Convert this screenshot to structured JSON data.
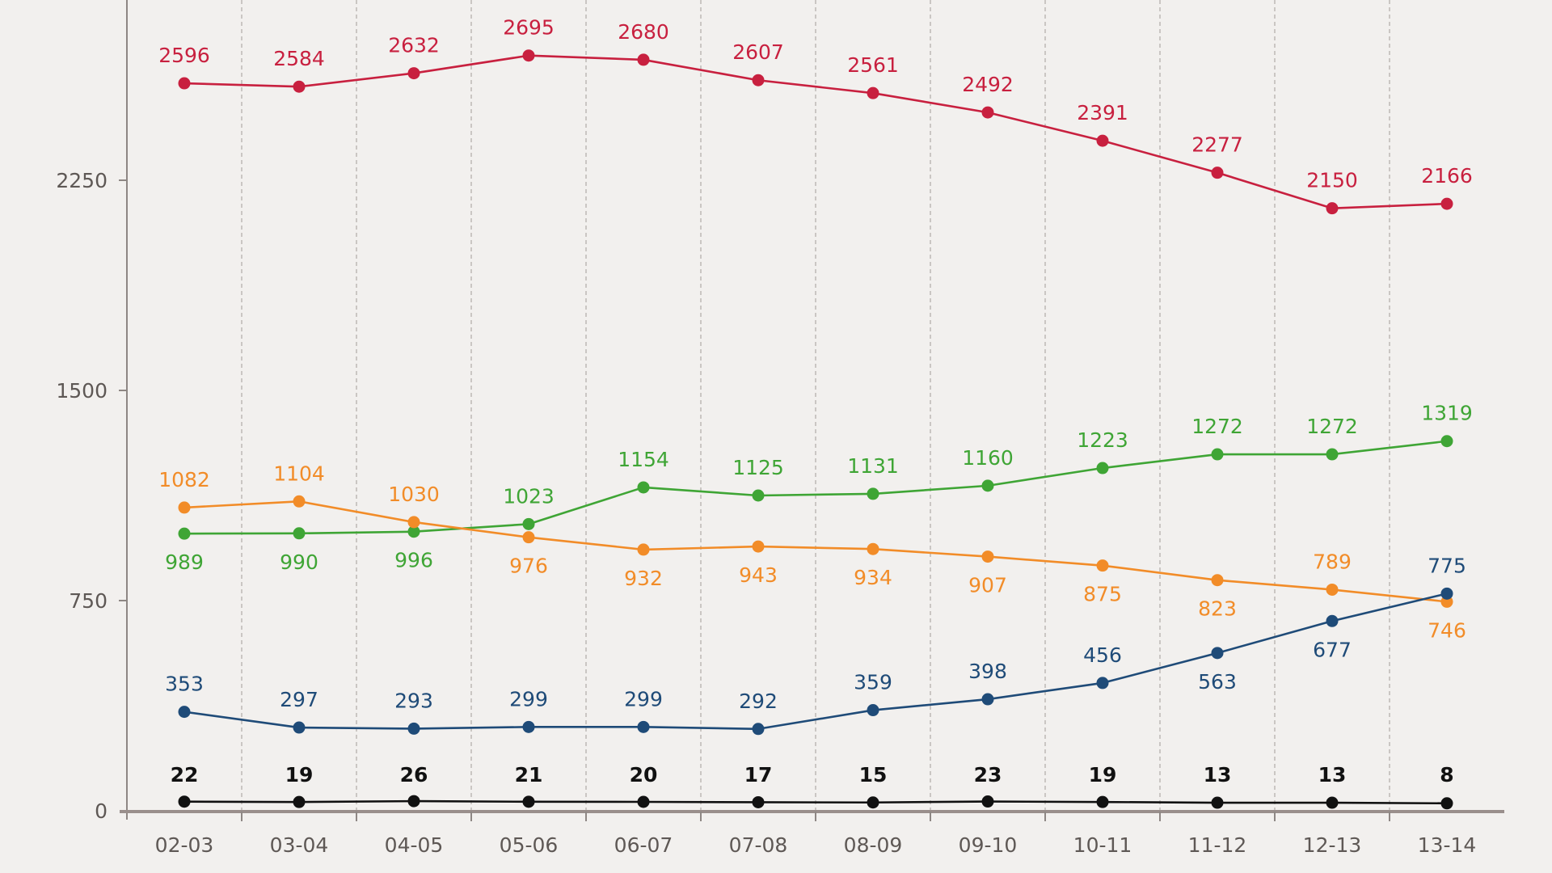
{
  "chart_data": {
    "type": "line",
    "title": "",
    "xlabel": "",
    "ylabel": "",
    "categories": [
      "02-03",
      "03-04",
      "04-05",
      "05-06",
      "06-07",
      "07-08",
      "08-09",
      "09-10",
      "10-11",
      "11-12",
      "12-13",
      "13-14"
    ],
    "ylim": [
      0,
      2900
    ],
    "yticks": [
      0,
      750,
      1500,
      2250
    ],
    "grid": "vertical dashed lines between categories",
    "legend": "none",
    "series": [
      {
        "name": "red",
        "color": "#C8203F",
        "values": [
          2596,
          2584,
          2632,
          2695,
          2680,
          2607,
          2561,
          2492,
          2391,
          2277,
          2150,
          2166
        ],
        "label_positions": [
          "above",
          "above",
          "above",
          "above",
          "above",
          "above",
          "above",
          "above",
          "above",
          "above",
          "above",
          "above"
        ]
      },
      {
        "name": "green",
        "color": "#3FA535",
        "values": [
          989,
          990,
          996,
          1023,
          1154,
          1125,
          1131,
          1160,
          1223,
          1272,
          1272,
          1319
        ],
        "label_positions": [
          "below",
          "below",
          "below",
          "above",
          "above",
          "above",
          "above",
          "above",
          "above",
          "above",
          "above",
          "above"
        ]
      },
      {
        "name": "orange",
        "color": "#F28C28",
        "values": [
          1082,
          1104,
          1030,
          976,
          932,
          943,
          934,
          907,
          875,
          823,
          789,
          746
        ],
        "label_positions": [
          "above",
          "above",
          "above",
          "below",
          "below",
          "below",
          "below",
          "below",
          "below",
          "below",
          "above",
          "below"
        ]
      },
      {
        "name": "blue",
        "color": "#1F4B78",
        "values": [
          353,
          297,
          293,
          299,
          299,
          292,
          359,
          398,
          456,
          563,
          677,
          775
        ],
        "label_positions": [
          "above",
          "above",
          "above",
          "above",
          "above",
          "above",
          "above",
          "above",
          "above",
          "below",
          "below",
          "above"
        ]
      },
      {
        "name": "black",
        "color": "#111111",
        "values": [
          22,
          19,
          26,
          21,
          20,
          17,
          15,
          23,
          19,
          13,
          13,
          8
        ],
        "label_positions": [
          "above",
          "above",
          "above",
          "above",
          "above",
          "above",
          "above",
          "above",
          "above",
          "above",
          "above",
          "above"
        ]
      }
    ]
  },
  "colors": {
    "background": "#F2F0EE",
    "axis": "#9A8F8C",
    "tick_label": "#5E5855",
    "grid": "#B5B0AC"
  }
}
